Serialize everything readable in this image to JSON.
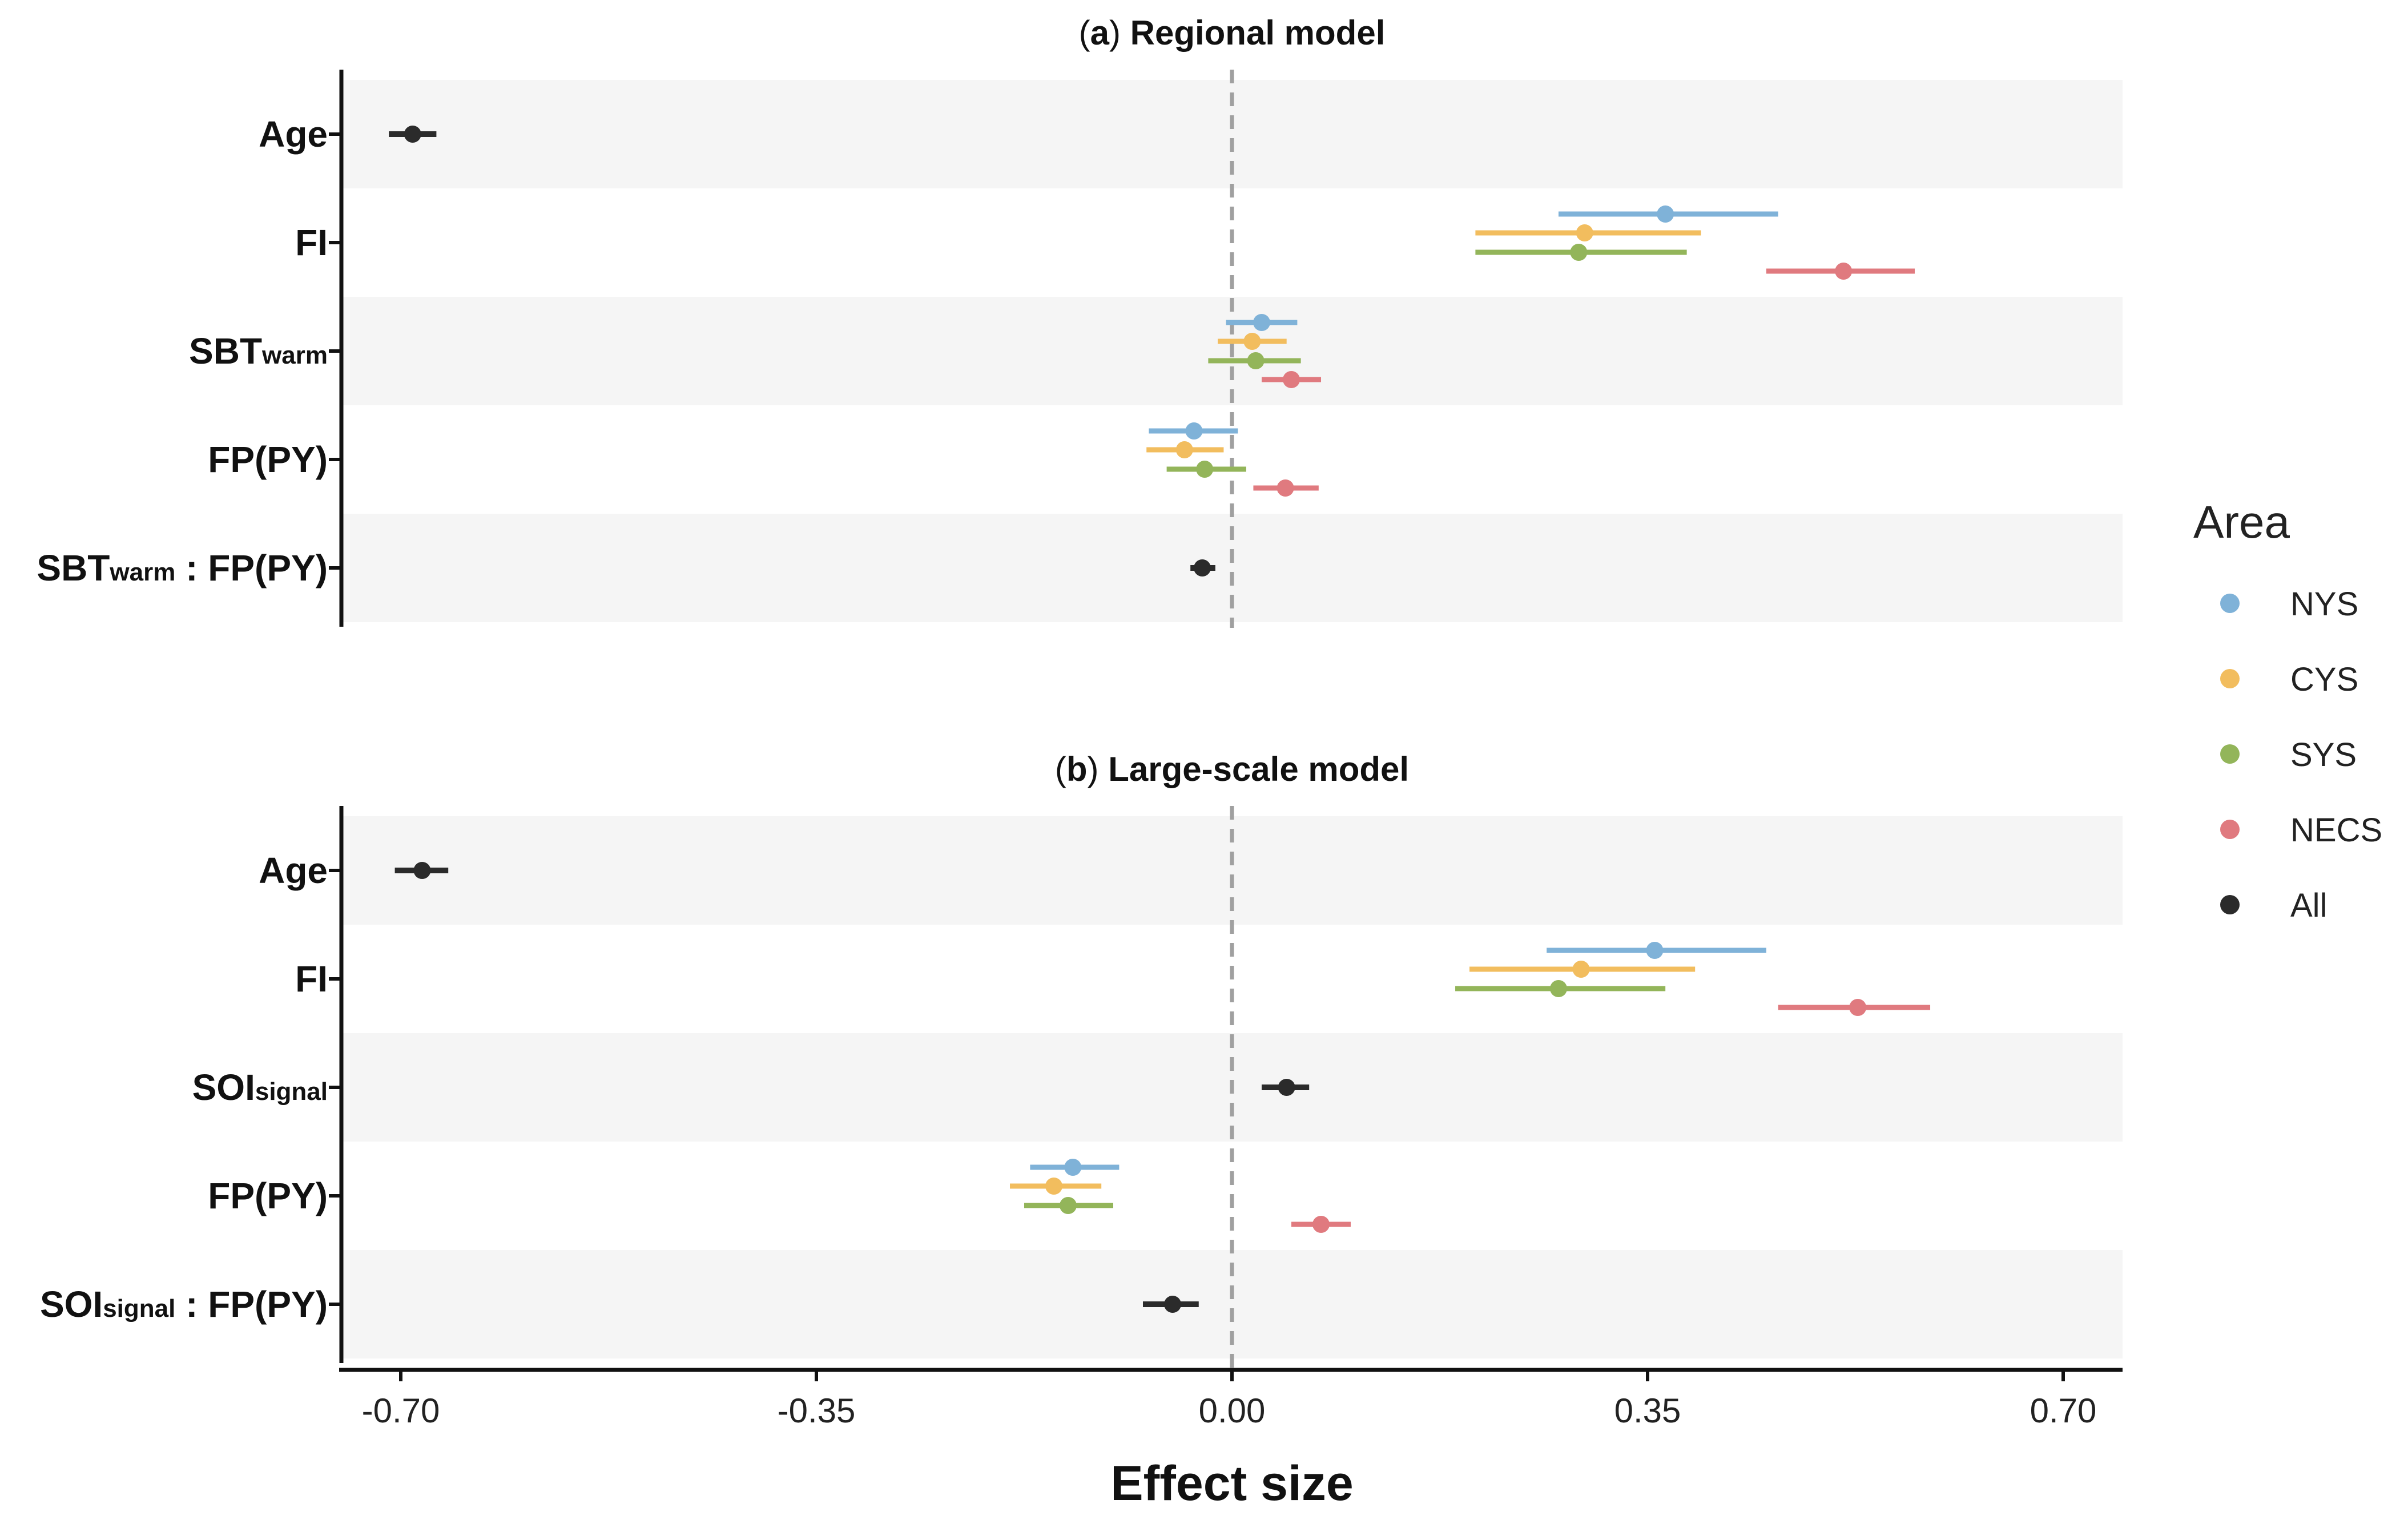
{
  "chart_data": [
    {
      "type": "forest",
      "panel": "a",
      "title": "Regional model",
      "categories": [
        {
          "main": "Age",
          "sub": "",
          "tail": ""
        },
        {
          "main": "FI",
          "sub": "",
          "tail": ""
        },
        {
          "main": "SBT",
          "sub": "warm",
          "tail": ""
        },
        {
          "main": "FP(PY)",
          "sub": "",
          "tail": ""
        },
        {
          "main": "SBT",
          "sub": "warm",
          "tail": " : FP(PY)"
        }
      ],
      "series": [
        {
          "name": "NYS",
          "color": "#7fb2d8",
          "points": [
            {
              "category": 1,
              "est": 0.365,
              "lo": 0.275,
              "hi": 0.46
            },
            {
              "category": 2,
              "est": 0.025,
              "lo": -0.005,
              "hi": 0.055
            },
            {
              "category": 3,
              "est": -0.032,
              "lo": -0.07,
              "hi": 0.005
            }
          ]
        },
        {
          "name": "CYS",
          "color": "#f2bd5e",
          "points": [
            {
              "category": 1,
              "est": 0.297,
              "lo": 0.205,
              "hi": 0.395
            },
            {
              "category": 2,
              "est": 0.017,
              "lo": -0.012,
              "hi": 0.046
            },
            {
              "category": 3,
              "est": -0.04,
              "lo": -0.072,
              "hi": -0.007
            }
          ]
        },
        {
          "name": "SYS",
          "color": "#93b55a",
          "points": [
            {
              "category": 1,
              "est": 0.292,
              "lo": 0.205,
              "hi": 0.383
            },
            {
              "category": 2,
              "est": 0.02,
              "lo": -0.02,
              "hi": 0.058
            },
            {
              "category": 3,
              "est": -0.023,
              "lo": -0.055,
              "hi": 0.012
            }
          ]
        },
        {
          "name": "NECS",
          "color": "#e07a7f",
          "points": [
            {
              "category": 1,
              "est": 0.515,
              "lo": 0.45,
              "hi": 0.575
            },
            {
              "category": 2,
              "est": 0.05,
              "lo": 0.025,
              "hi": 0.075
            },
            {
              "category": 3,
              "est": 0.045,
              "lo": 0.018,
              "hi": 0.073
            }
          ]
        },
        {
          "name": "All",
          "color": "#2b2b2b",
          "points": [
            {
              "category": 0,
              "est": -0.69,
              "lo": -0.71,
              "hi": -0.67
            },
            {
              "category": 4,
              "est": -0.025,
              "lo": -0.035,
              "hi": -0.014
            }
          ]
        }
      ]
    },
    {
      "type": "forest",
      "panel": "b",
      "title": "Large-scale model",
      "categories": [
        {
          "main": "Age",
          "sub": "",
          "tail": ""
        },
        {
          "main": "FI",
          "sub": "",
          "tail": ""
        },
        {
          "main": "SOI",
          "sub": "signal",
          "tail": ""
        },
        {
          "main": "FP(PY)",
          "sub": "",
          "tail": ""
        },
        {
          "main": "SOI",
          "sub": "signal",
          "tail": " : FP(PY)"
        }
      ],
      "series": [
        {
          "name": "NYS",
          "color": "#7fb2d8",
          "points": [
            {
              "category": 1,
              "est": 0.356,
              "lo": 0.265,
              "hi": 0.45
            },
            {
              "category": 3,
              "est": -0.134,
              "lo": -0.17,
              "hi": -0.095
            }
          ]
        },
        {
          "name": "CYS",
          "color": "#f2bd5e",
          "points": [
            {
              "category": 1,
              "est": 0.294,
              "lo": 0.2,
              "hi": 0.39
            },
            {
              "category": 3,
              "est": -0.15,
              "lo": -0.187,
              "hi": -0.11
            }
          ]
        },
        {
          "name": "SYS",
          "color": "#93b55a",
          "points": [
            {
              "category": 1,
              "est": 0.275,
              "lo": 0.188,
              "hi": 0.365
            },
            {
              "category": 3,
              "est": -0.138,
              "lo": -0.175,
              "hi": -0.1
            }
          ]
        },
        {
          "name": "NECS",
          "color": "#e07a7f",
          "points": [
            {
              "category": 1,
              "est": 0.527,
              "lo": 0.46,
              "hi": 0.588
            },
            {
              "category": 3,
              "est": 0.075,
              "lo": 0.05,
              "hi": 0.1
            }
          ]
        },
        {
          "name": "All",
          "color": "#2b2b2b",
          "points": [
            {
              "category": 0,
              "est": -0.682,
              "lo": -0.705,
              "hi": -0.66
            },
            {
              "category": 2,
              "est": 0.046,
              "lo": 0.025,
              "hi": 0.065
            },
            {
              "category": 4,
              "est": -0.05,
              "lo": -0.075,
              "hi": -0.028
            }
          ]
        }
      ]
    }
  ],
  "xaxis": {
    "label": "Effect size",
    "ticks": [
      -0.7,
      -0.35,
      0,
      0.35,
      0.7
    ],
    "tick_labels": [
      "-0.70",
      "-0.35",
      "0.00",
      "0.35",
      "0.70"
    ],
    "xlim": [
      -0.75,
      0.75
    ],
    "reference_line": 0
  },
  "legend": {
    "title": "Area",
    "placement": "right",
    "items": [
      {
        "name": "NYS",
        "color": "#7fb2d8"
      },
      {
        "name": "CYS",
        "color": "#f2bd5e"
      },
      {
        "name": "SYS",
        "color": "#93b55a"
      },
      {
        "name": "NECS",
        "color": "#e07a7f"
      },
      {
        "name": "All",
        "color": "#2b2b2b"
      }
    ]
  },
  "colors": {
    "band": "#f5f5f5",
    "axis": "#111111",
    "reference_line": "#a0a0a0"
  }
}
